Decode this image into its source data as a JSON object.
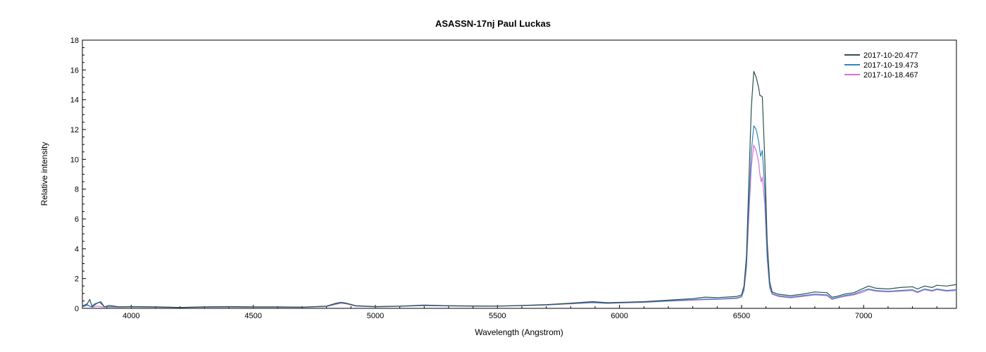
{
  "chart_data": {
    "type": "line",
    "title": "ASASSN-17nj  Paul Luckas",
    "xlabel": "Wavelength (Angstrom)",
    "ylabel": "Relative intensity",
    "xlim": [
      3800,
      7380
    ],
    "ylim": [
      0,
      18
    ],
    "x_ticks": [
      4000,
      4500,
      5000,
      5500,
      6000,
      6500,
      7000
    ],
    "x_tick_labels": [
      "4000",
      "4500",
      "5000",
      "5500",
      "6000",
      "6500",
      "7000"
    ],
    "y_ticks": [
      0,
      2,
      4,
      6,
      8,
      10,
      12,
      14,
      16,
      18
    ],
    "y_tick_labels": [
      "0",
      "2",
      "4",
      "6",
      "8",
      "10",
      "12",
      "14",
      "16",
      "18"
    ],
    "grid": false,
    "legend_position": "top-right",
    "series": [
      {
        "name": "2017-10-20.477",
        "color": "#2f4f4f",
        "points": [
          [
            3800,
            0.15
          ],
          [
            3820,
            0.3
          ],
          [
            3830,
            0.6
          ],
          [
            3840,
            0.1
          ],
          [
            3860,
            0.35
          ],
          [
            3875,
            0.45
          ],
          [
            3890,
            0.1
          ],
          [
            3910,
            0.2
          ],
          [
            3950,
            0.1
          ],
          [
            4000,
            0.12
          ],
          [
            4100,
            0.1
          ],
          [
            4200,
            0.06
          ],
          [
            4300,
            0.1
          ],
          [
            4400,
            0.12
          ],
          [
            4500,
            0.1
          ],
          [
            4600,
            0.1
          ],
          [
            4700,
            0.08
          ],
          [
            4800,
            0.15
          ],
          [
            4840,
            0.35
          ],
          [
            4860,
            0.4
          ],
          [
            4880,
            0.35
          ],
          [
            4920,
            0.18
          ],
          [
            5000,
            0.12
          ],
          [
            5100,
            0.15
          ],
          [
            5200,
            0.22
          ],
          [
            5300,
            0.18
          ],
          [
            5400,
            0.16
          ],
          [
            5500,
            0.15
          ],
          [
            5600,
            0.2
          ],
          [
            5700,
            0.25
          ],
          [
            5800,
            0.35
          ],
          [
            5890,
            0.45
          ],
          [
            5950,
            0.38
          ],
          [
            6000,
            0.4
          ],
          [
            6100,
            0.45
          ],
          [
            6200,
            0.55
          ],
          [
            6300,
            0.65
          ],
          [
            6350,
            0.75
          ],
          [
            6400,
            0.72
          ],
          [
            6480,
            0.8
          ],
          [
            6500,
            0.9
          ],
          [
            6510,
            1.5
          ],
          [
            6520,
            3.5
          ],
          [
            6530,
            8.5
          ],
          [
            6540,
            13.5
          ],
          [
            6550,
            15.9
          ],
          [
            6560,
            15.5
          ],
          [
            6570,
            14.8
          ],
          [
            6575,
            14.3
          ],
          [
            6585,
            14.2
          ],
          [
            6595,
            10
          ],
          [
            6605,
            4.5
          ],
          [
            6615,
            1.8
          ],
          [
            6625,
            1.1
          ],
          [
            6650,
            0.95
          ],
          [
            6700,
            0.85
          ],
          [
            6750,
            0.95
          ],
          [
            6800,
            1.1
          ],
          [
            6850,
            1.05
          ],
          [
            6870,
            0.75
          ],
          [
            6890,
            0.8
          ],
          [
            6920,
            0.95
          ],
          [
            6960,
            1.05
          ],
          [
            7000,
            1.35
          ],
          [
            7020,
            1.5
          ],
          [
            7050,
            1.35
          ],
          [
            7100,
            1.3
          ],
          [
            7150,
            1.4
          ],
          [
            7200,
            1.45
          ],
          [
            7220,
            1.3
          ],
          [
            7250,
            1.5
          ],
          [
            7280,
            1.4
          ],
          [
            7300,
            1.55
          ],
          [
            7340,
            1.5
          ],
          [
            7380,
            1.6
          ]
        ]
      },
      {
        "name": "2017-10-19.473",
        "color": "#2e86c1",
        "points": [
          [
            3800,
            0.1
          ],
          [
            3820,
            0.25
          ],
          [
            3835,
            0.1
          ],
          [
            3850,
            0.3
          ],
          [
            3870,
            0.4
          ],
          [
            3890,
            0.12
          ],
          [
            3950,
            0.1
          ],
          [
            4000,
            0.1
          ],
          [
            4100,
            0.09
          ],
          [
            4200,
            0.06
          ],
          [
            4300,
            0.09
          ],
          [
            4400,
            0.1
          ],
          [
            4500,
            0.09
          ],
          [
            4600,
            0.09
          ],
          [
            4700,
            0.08
          ],
          [
            4800,
            0.14
          ],
          [
            4840,
            0.3
          ],
          [
            4860,
            0.4
          ],
          [
            4880,
            0.33
          ],
          [
            4920,
            0.16
          ],
          [
            5000,
            0.11
          ],
          [
            5100,
            0.14
          ],
          [
            5200,
            0.2
          ],
          [
            5300,
            0.17
          ],
          [
            5400,
            0.15
          ],
          [
            5500,
            0.15
          ],
          [
            5600,
            0.19
          ],
          [
            5700,
            0.23
          ],
          [
            5800,
            0.33
          ],
          [
            5890,
            0.4
          ],
          [
            5950,
            0.35
          ],
          [
            6000,
            0.38
          ],
          [
            6100,
            0.42
          ],
          [
            6200,
            0.5
          ],
          [
            6300,
            0.58
          ],
          [
            6350,
            0.62
          ],
          [
            6400,
            0.63
          ],
          [
            6480,
            0.7
          ],
          [
            6500,
            0.8
          ],
          [
            6510,
            1.3
          ],
          [
            6520,
            3.0
          ],
          [
            6530,
            7.0
          ],
          [
            6540,
            10.5
          ],
          [
            6550,
            12.25
          ],
          [
            6560,
            12.0
          ],
          [
            6570,
            11.2
          ],
          [
            6578,
            10.2
          ],
          [
            6585,
            10.6
          ],
          [
            6595,
            8.0
          ],
          [
            6605,
            3.6
          ],
          [
            6615,
            1.5
          ],
          [
            6625,
            1.0
          ],
          [
            6650,
            0.85
          ],
          [
            6700,
            0.75
          ],
          [
            6750,
            0.85
          ],
          [
            6800,
            0.95
          ],
          [
            6850,
            0.9
          ],
          [
            6870,
            0.65
          ],
          [
            6890,
            0.72
          ],
          [
            6920,
            0.85
          ],
          [
            6960,
            0.95
          ],
          [
            7000,
            1.2
          ],
          [
            7020,
            1.3
          ],
          [
            7050,
            1.2
          ],
          [
            7100,
            1.15
          ],
          [
            7150,
            1.2
          ],
          [
            7200,
            1.25
          ],
          [
            7220,
            1.1
          ],
          [
            7250,
            1.3
          ],
          [
            7280,
            1.2
          ],
          [
            7300,
            1.3
          ],
          [
            7340,
            1.2
          ],
          [
            7380,
            1.25
          ]
        ]
      },
      {
        "name": "2017-10-18.467",
        "color": "#da70d6",
        "points": [
          [
            3800,
            0.1
          ],
          [
            3820,
            0.2
          ],
          [
            3840,
            0.08
          ],
          [
            3860,
            0.15
          ],
          [
            3880,
            0.1
          ],
          [
            3950,
            0.08
          ],
          [
            4000,
            0.1
          ],
          [
            4100,
            0.08
          ],
          [
            4200,
            0.05
          ],
          [
            4300,
            0.08
          ],
          [
            4400,
            0.09
          ],
          [
            4500,
            0.08
          ],
          [
            4600,
            0.08
          ],
          [
            4700,
            0.07
          ],
          [
            4800,
            0.12
          ],
          [
            4840,
            0.28
          ],
          [
            4860,
            0.34
          ],
          [
            4880,
            0.3
          ],
          [
            4920,
            0.15
          ],
          [
            5000,
            0.1
          ],
          [
            5100,
            0.13
          ],
          [
            5200,
            0.18
          ],
          [
            5300,
            0.16
          ],
          [
            5400,
            0.14
          ],
          [
            5500,
            0.14
          ],
          [
            5600,
            0.18
          ],
          [
            5700,
            0.22
          ],
          [
            5800,
            0.3
          ],
          [
            5890,
            0.38
          ],
          [
            5950,
            0.33
          ],
          [
            6000,
            0.36
          ],
          [
            6100,
            0.4
          ],
          [
            6200,
            0.48
          ],
          [
            6300,
            0.55
          ],
          [
            6350,
            0.58
          ],
          [
            6400,
            0.6
          ],
          [
            6480,
            0.66
          ],
          [
            6500,
            0.75
          ],
          [
            6510,
            1.2
          ],
          [
            6520,
            2.7
          ],
          [
            6530,
            6.2
          ],
          [
            6540,
            9.5
          ],
          [
            6550,
            10.95
          ],
          [
            6560,
            10.6
          ],
          [
            6570,
            9.8
          ],
          [
            6575,
            9.0
          ],
          [
            6580,
            8.5
          ],
          [
            6585,
            8.8
          ],
          [
            6595,
            7.0
          ],
          [
            6605,
            3.3
          ],
          [
            6615,
            1.4
          ],
          [
            6625,
            0.95
          ],
          [
            6650,
            0.8
          ],
          [
            6700,
            0.7
          ],
          [
            6750,
            0.8
          ],
          [
            6800,
            0.9
          ],
          [
            6850,
            0.85
          ],
          [
            6870,
            0.6
          ],
          [
            6890,
            0.68
          ],
          [
            6920,
            0.8
          ],
          [
            6960,
            0.9
          ],
          [
            7000,
            1.1
          ],
          [
            7020,
            1.25
          ],
          [
            7050,
            1.15
          ],
          [
            7100,
            1.1
          ],
          [
            7150,
            1.15
          ],
          [
            7200,
            1.2
          ],
          [
            7220,
            1.05
          ],
          [
            7250,
            1.25
          ],
          [
            7280,
            1.15
          ],
          [
            7300,
            1.25
          ],
          [
            7340,
            1.15
          ],
          [
            7380,
            1.2
          ]
        ]
      }
    ]
  }
}
